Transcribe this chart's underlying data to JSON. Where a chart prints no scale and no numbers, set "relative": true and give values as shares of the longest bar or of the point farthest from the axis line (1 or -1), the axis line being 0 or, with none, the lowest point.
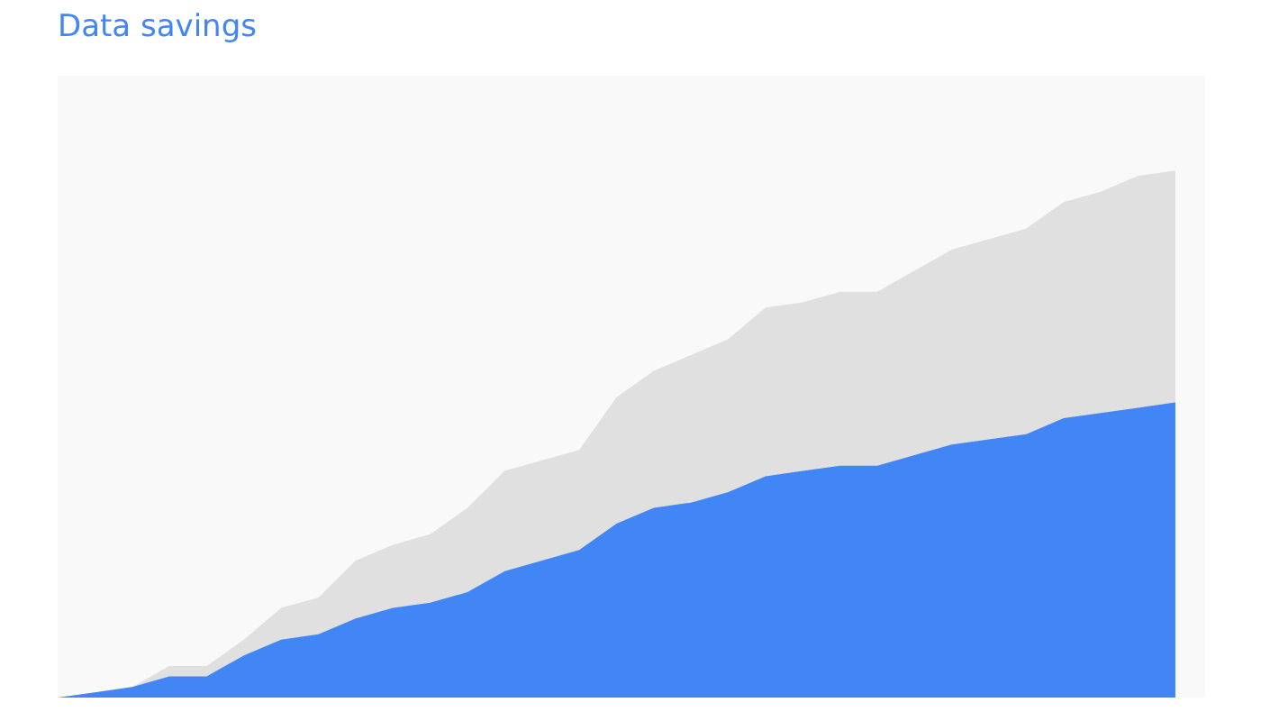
{
  "chart_data": {
    "type": "area",
    "title": "Data savings",
    "relative": true,
    "categories": [
      null,
      null,
      null,
      null,
      null,
      null,
      null,
      null,
      null,
      null,
      null,
      null,
      null,
      null,
      null,
      null,
      null,
      null,
      null,
      null,
      null,
      null,
      null,
      null,
      null,
      null,
      null,
      null,
      null,
      null,
      null
    ],
    "series": [
      {
        "color": "#e0e0e0",
        "values": [
          0.0,
          0.01,
          0.02,
          0.06,
          0.06,
          0.11,
          0.17,
          0.19,
          0.26,
          0.29,
          0.31,
          0.36,
          0.43,
          0.45,
          0.47,
          0.57,
          0.62,
          0.65,
          0.68,
          0.74,
          0.75,
          0.77,
          0.77,
          0.81,
          0.85,
          0.87,
          0.89,
          0.94,
          0.96,
          0.99,
          1.0
        ]
      },
      {
        "color": "#4285f4",
        "values": [
          0.0,
          0.01,
          0.02,
          0.04,
          0.04,
          0.08,
          0.11,
          0.12,
          0.15,
          0.17,
          0.18,
          0.2,
          0.24,
          0.26,
          0.28,
          0.33,
          0.36,
          0.37,
          0.39,
          0.42,
          0.43,
          0.44,
          0.44,
          0.46,
          0.48,
          0.49,
          0.5,
          0.53,
          0.54,
          0.55,
          0.56
        ]
      }
    ]
  }
}
